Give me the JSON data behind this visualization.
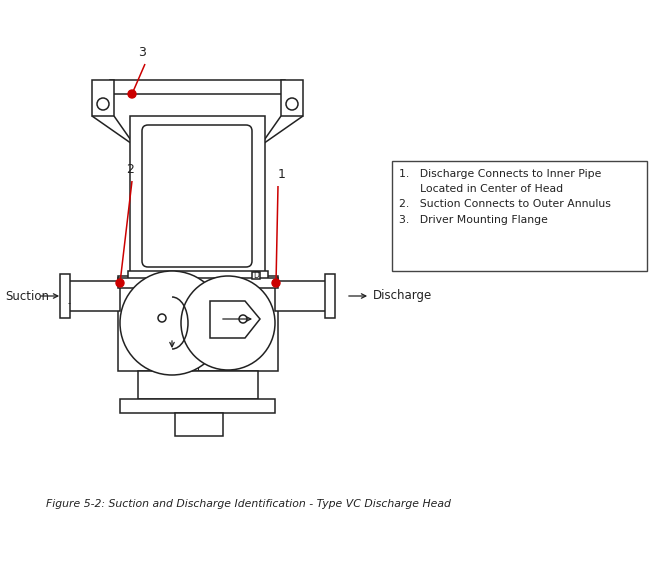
{
  "title": "Figure 5-2: Suction and Discharge Identification - Type VC Discharge Head",
  "legend_line1": "1.   Discharge Connects to Inner Pipe",
  "legend_line2": "      Located in Center of Head",
  "legend_line3": "2.   Suction Connects to Outer Annulus",
  "legend_line4": "3.   Driver Mounting Flange",
  "line_color": "#222222",
  "bg_color": "#ffffff",
  "red_color": "#cc0000",
  "fig_width": 6.59,
  "fig_height": 5.66,
  "dpi": 100
}
